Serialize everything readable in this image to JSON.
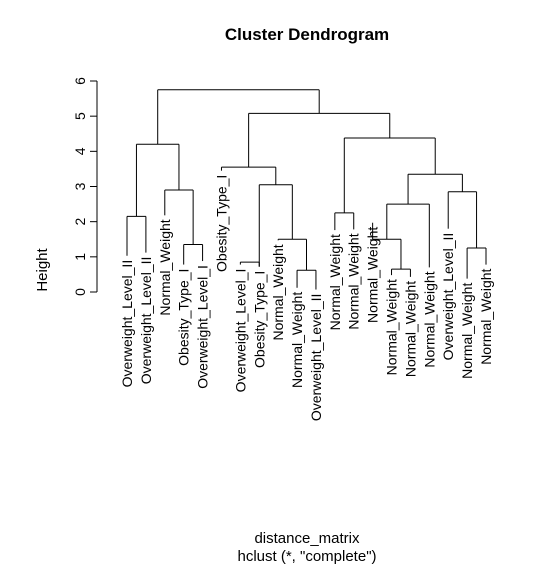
{
  "chart_data": {
    "type": "dendrogram",
    "title": "Cluster Dendrogram",
    "ylabel": "Height",
    "xlabel": "distance_matrix",
    "sub": "hclust (*, \"complete\")",
    "ylim": [
      0,
      6
    ],
    "yticks": [
      0,
      1,
      2,
      3,
      4,
      5,
      6
    ],
    "leaves": [
      "Overweight_Level_II",
      "Overweight_Level_II",
      "Normal_Weight",
      "Obesity_Type_I",
      "Overweight_Level_I",
      "Obesity_Type_I",
      "Overweight_Level_I",
      "Obesity_Type_I",
      "Normal_Weight",
      "Normal_Weight",
      "Overweight_Level_II",
      "Normal_Weight",
      "Normal_Weight",
      "Normal_Weight",
      "Normal_Weight",
      "Normal_Weight",
      "Normal_Weight",
      "Overweight_Level_II",
      "Normal_Weight",
      "Normal_Weight"
    ],
    "leaf_tops": [
      1.03,
      1.12,
      2.18,
      0.78,
      0.88,
      3.45,
      0.78,
      0.72,
      1.47,
      0.12,
      0.07,
      1.76,
      1.78,
      1.97,
      0.48,
      0.43,
      0.7,
      1.8,
      0.38,
      0.78
    ],
    "merges": [
      {
        "a": 1,
        "b": 2,
        "h": 2.15
      },
      {
        "a": 4,
        "b": 5,
        "h": 1.35
      },
      {
        "a": 7,
        "b": 8,
        "h": 0.85
      },
      {
        "a": 10,
        "b": 11,
        "h": 0.62
      },
      {
        "a": 12,
        "b": 13,
        "h": 2.25
      },
      {
        "a": 15,
        "b": 16,
        "h": 0.65
      },
      {
        "a": 19,
        "b": 20,
        "h": 1.25
      },
      {
        "a": 4.5,
        "b": 3,
        "h": 2.9
      },
      {
        "a": 9,
        "b": 10.5,
        "h": 1.5
      },
      {
        "a": 14,
        "b": 15.5,
        "h": 1.5
      },
      {
        "a": 18,
        "b": 19.5,
        "h": 2.85
      },
      {
        "a": 8,
        "b": 9.75,
        "h": 3.05
      },
      {
        "a": 1.5,
        "b": 3.75,
        "h": 4.2
      },
      {
        "a": 6,
        "b": 8.875,
        "h": 3.55
      },
      {
        "a": 14.75,
        "b": 17,
        "h": 2.5
      },
      {
        "a": 15.875,
        "b": 18.75,
        "h": 3.35
      },
      {
        "a": 12.5,
        "b": 17.3125,
        "h": 4.38
      },
      {
        "a": 7.4375,
        "b": 14.90625,
        "h": 5.08
      },
      {
        "a": 2.625,
        "b": 11.171875,
        "h": 5.75
      }
    ]
  }
}
